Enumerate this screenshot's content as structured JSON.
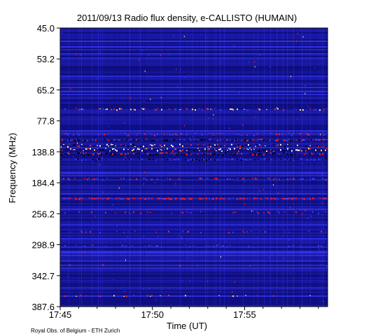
{
  "chart_data": {
    "type": "heatmap",
    "title": "2011/09/13  Radio flux density, e-CALLISTO (HUMAIN)",
    "xlabel": "Time (UT)",
    "ylabel": "Frequency (MHz)",
    "x_ticks": [
      "17:45",
      "17:50",
      "17:55"
    ],
    "y_ticks": [
      "45.0",
      "53.2",
      "65.2",
      "77.8",
      "138.8",
      "184.4",
      "256.2",
      "298.9",
      "342.7",
      "387.6"
    ],
    "x_range": [
      "17:45",
      "17:59:30"
    ],
    "y_range": [
      45.0,
      387.6
    ],
    "colormap": [
      "#0c0c7a",
      "#1d1db0",
      "#3a3aff",
      "#ff2020",
      "#ffe060",
      "#ffffff",
      "#000000"
    ],
    "footer": "Royal Obs. of Belgium - ETH Zurich"
  }
}
